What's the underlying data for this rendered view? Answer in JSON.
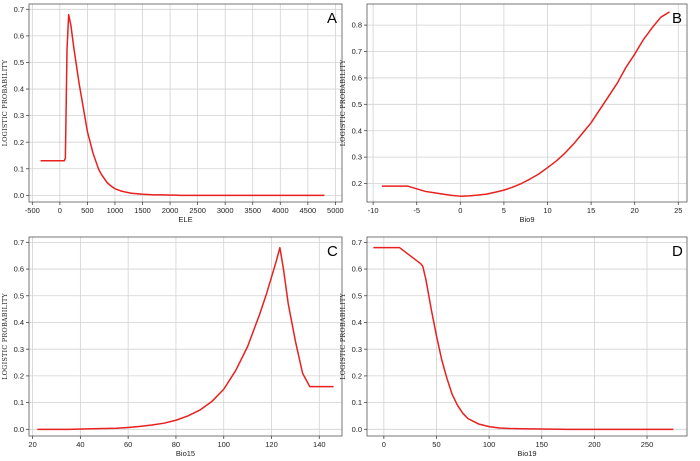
{
  "chart_data": [
    {
      "type": "line",
      "panel_label": "A",
      "xlabel": "ELE",
      "ylabel": "LOGISTIC PROBABILITY",
      "xlim": [
        -560,
        5120
      ],
      "ylim": [
        -0.025,
        0.72
      ],
      "xticks": [
        -500,
        0,
        500,
        1000,
        1500,
        2000,
        2500,
        3000,
        3500,
        4000,
        4500,
        5000
      ],
      "yticks": [
        0.0,
        0.1,
        0.2,
        0.3,
        0.4,
        0.5,
        0.6,
        0.7
      ],
      "ytick_labels": [
        "0.0",
        "0.1",
        "0.2",
        "0.3",
        "0.4",
        "0.5",
        "0.6",
        "0.7"
      ],
      "grid": true,
      "series": [
        {
          "color": "#e8201e",
          "x": [
            -350,
            0,
            80,
            100,
            130,
            160,
            200,
            250,
            300,
            350,
            400,
            450,
            500,
            550,
            600,
            650,
            700,
            750,
            800,
            850,
            900,
            950,
            1000,
            1100,
            1200,
            1300,
            1400,
            1500,
            1600,
            1700,
            1800,
            1900,
            2000,
            2100,
            2200,
            2500,
            3000,
            3500,
            4000,
            4500,
            4800
          ],
          "y": [
            0.13,
            0.13,
            0.13,
            0.14,
            0.55,
            0.68,
            0.64,
            0.56,
            0.49,
            0.42,
            0.36,
            0.3,
            0.24,
            0.2,
            0.16,
            0.13,
            0.1,
            0.08,
            0.065,
            0.05,
            0.04,
            0.032,
            0.025,
            0.017,
            0.012,
            0.008,
            0.006,
            0.004,
            0.003,
            0.002,
            0.002,
            0.002,
            0.001,
            0.001,
            0.0,
            0.0,
            0.0,
            0.0,
            0.0,
            0.0,
            0.0
          ]
        }
      ]
    },
    {
      "type": "line",
      "panel_label": "B",
      "xlabel": "Bio9",
      "ylabel": "LOGISTIC PROBABILITY",
      "xlim": [
        -10.7,
        26.0
      ],
      "ylim": [
        0.13,
        0.88
      ],
      "xticks": [
        -10,
        -5,
        0,
        5,
        10,
        15,
        20,
        25
      ],
      "yticks": [
        0.2,
        0.3,
        0.4,
        0.5,
        0.6,
        0.7,
        0.8
      ],
      "ytick_labels": [
        "0.2",
        "0.3",
        "0.4",
        "0.5",
        "0.6",
        "0.7",
        "0.8"
      ],
      "grid": true,
      "series": [
        {
          "color": "#e8201e",
          "x": [
            -9,
            -8,
            -7,
            -6,
            -5,
            -4,
            -3,
            -2,
            -1,
            0,
            1,
            2,
            3,
            4,
            5,
            6,
            7,
            8,
            9,
            10,
            11,
            12,
            13,
            14,
            15,
            16,
            17,
            18,
            19,
            20,
            21,
            22,
            23,
            24
          ],
          "y": [
            0.19,
            0.19,
            0.19,
            0.19,
            0.18,
            0.17,
            0.165,
            0.16,
            0.155,
            0.152,
            0.153,
            0.156,
            0.16,
            0.167,
            0.175,
            0.186,
            0.2,
            0.217,
            0.236,
            0.26,
            0.285,
            0.315,
            0.35,
            0.39,
            0.43,
            0.48,
            0.53,
            0.58,
            0.64,
            0.69,
            0.745,
            0.79,
            0.83,
            0.85
          ]
        }
      ]
    },
    {
      "type": "line",
      "panel_label": "C",
      "xlabel": "Bio15",
      "ylabel": "LOGISTIC PROBABILITY",
      "xlim": [
        18.5,
        149.5
      ],
      "ylim": [
        -0.025,
        0.72
      ],
      "xticks": [
        20,
        40,
        60,
        80,
        100,
        120,
        140
      ],
      "yticks": [
        0.0,
        0.1,
        0.2,
        0.3,
        0.4,
        0.5,
        0.6,
        0.7
      ],
      "ytick_labels": [
        "0.0",
        "0.1",
        "0.2",
        "0.3",
        "0.4",
        "0.5",
        "0.6",
        "0.7"
      ],
      "grid": true,
      "series": [
        {
          "color": "#e8201e",
          "x": [
            22,
            35,
            45,
            55,
            60,
            65,
            70,
            75,
            80,
            85,
            90,
            95,
            100,
            105,
            110,
            115,
            118,
            120,
            122,
            123.5,
            125,
            127,
            130,
            133,
            136,
            140,
            146
          ],
          "y": [
            0.0,
            0.0,
            0.002,
            0.004,
            0.007,
            0.011,
            0.016,
            0.023,
            0.034,
            0.05,
            0.072,
            0.104,
            0.15,
            0.22,
            0.31,
            0.43,
            0.51,
            0.57,
            0.63,
            0.68,
            0.6,
            0.47,
            0.33,
            0.21,
            0.16,
            0.16,
            0.16
          ]
        }
      ]
    },
    {
      "type": "line",
      "panel_label": "D",
      "xlabel": "Bio19",
      "ylabel": "LOGISTIC PROBABILITY",
      "xlim": [
        -16,
        288
      ],
      "ylim": [
        -0.025,
        0.72
      ],
      "xticks": [
        0,
        50,
        100,
        150,
        200,
        250
      ],
      "yticks": [
        0.0,
        0.1,
        0.2,
        0.3,
        0.4,
        0.5,
        0.6,
        0.7
      ],
      "ytick_labels": [
        "0.0",
        "0.1",
        "0.2",
        "0.3",
        "0.4",
        "0.5",
        "0.6",
        "0.7"
      ],
      "grid": true,
      "series": [
        {
          "color": "#e8201e",
          "x": [
            -10,
            0,
            10,
            15,
            20,
            25,
            30,
            35,
            37,
            40,
            45,
            50,
            55,
            60,
            65,
            70,
            75,
            80,
            85,
            90,
            100,
            110,
            120,
            130,
            150,
            175,
            200,
            225,
            250,
            275
          ],
          "y": [
            0.68,
            0.68,
            0.68,
            0.68,
            0.665,
            0.65,
            0.635,
            0.62,
            0.61,
            0.56,
            0.45,
            0.35,
            0.26,
            0.19,
            0.13,
            0.09,
            0.06,
            0.04,
            0.03,
            0.02,
            0.01,
            0.005,
            0.003,
            0.002,
            0.001,
            0.0,
            0.0,
            0.0,
            0.0,
            0.0
          ]
        }
      ]
    }
  ]
}
